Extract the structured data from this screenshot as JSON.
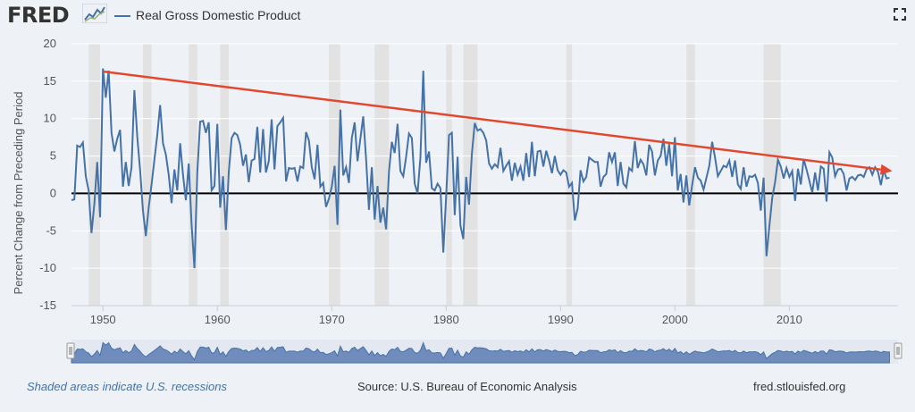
{
  "header": {
    "logo_text": "FRED",
    "series_label": "Real Gross Domestic Product"
  },
  "footer": {
    "recession_note": "Shaded areas indicate U.S. recessions",
    "source": "Source: U.S. Bureau of Economic Analysis",
    "site": "fred.stlouisfed.org"
  },
  "icons": [
    "fred-logo-chart-icon",
    "fullscreen-icon",
    "navigator-handle-icon"
  ],
  "colors": {
    "series": "#4572a7",
    "trend_arrow": "#e2472f",
    "recession": "#e2e2e2",
    "zero_line": "#000000"
  },
  "chart_data": {
    "type": "line",
    "title": "",
    "xlabel": "",
    "ylabel": "Percent Change from Preceding Period",
    "xlim": [
      1947.25,
      2019.5
    ],
    "ylim": [
      -15,
      20
    ],
    "yticks": [
      -15,
      -10,
      -5,
      0,
      5,
      10,
      15,
      20
    ],
    "xticks": [
      1950,
      1960,
      1970,
      1980,
      1990,
      2000,
      2010
    ],
    "grid": "horizontal",
    "legend": "top-left",
    "series": [
      {
        "name": "Real Gross Domestic Product",
        "x_start": 1947.25,
        "x_step": 0.25,
        "values": [
          -0.9,
          -0.8,
          6.4,
          6.2,
          6.8,
          2.3,
          0.4,
          -5.3,
          -1.4,
          4.2,
          -3.2,
          16.7,
          12.8,
          16.4,
          8.1,
          5.6,
          7.3,
          8.5,
          0.9,
          4.2,
          1.0,
          3.5,
          13.8,
          7.6,
          3.1,
          -2.3,
          -5.7,
          -1.9,
          1.2,
          4.5,
          7.8,
          11.8,
          6.7,
          5.2,
          2.5,
          -1.3,
          3.2,
          0.4,
          6.7,
          2.5,
          -0.9,
          4.0,
          -4.1,
          -10.0,
          2.8,
          9.6,
          9.7,
          8.1,
          9.5,
          0.4,
          1.0,
          9.3,
          -1.9,
          2.3,
          -4.9,
          2.8,
          7.4,
          8.1,
          7.8,
          6.5,
          3.7,
          5.2,
          1.5,
          4.4,
          4.6,
          8.9,
          2.8,
          8.6,
          2.8,
          4.3,
          9.9,
          3.2,
          9.0,
          9.5,
          10.1,
          1.6,
          3.4,
          3.3,
          3.4,
          1.6,
          3.6,
          3.4,
          8.2,
          7.1,
          3.5,
          1.9,
          6.5,
          0.9,
          1.4,
          -1.8,
          -0.7,
          0.9,
          3.7,
          -4.2,
          11.2,
          2.4,
          3.5,
          1.4,
          7.4,
          9.5,
          4.3,
          7.3,
          10.3,
          4.6,
          -2.2,
          3.5,
          -3.5,
          1.0,
          -3.9,
          -1.9,
          -4.8,
          2.9,
          6.9,
          5.4,
          9.3,
          3.0,
          2.3,
          4.9,
          8.0,
          7.4,
          1.3,
          0.0,
          4.8,
          16.4,
          4.1,
          5.6,
          0.7,
          0.4,
          1.3,
          0.7,
          -7.9,
          -0.4,
          7.8,
          8.1,
          -2.9,
          4.9,
          -4.3,
          -6.1,
          2.2,
          -1.5,
          5.3,
          9.4,
          8.4,
          8.6,
          8.1,
          7.1,
          4.0,
          3.3,
          3.9,
          3.5,
          6.1,
          3.0,
          3.7,
          4.3,
          1.7,
          4.1,
          2.5,
          3.6,
          1.7,
          5.4,
          2.2,
          6.9,
          2.3,
          5.6,
          5.7,
          3.6,
          5.7,
          4.4,
          2.7,
          5.0,
          3.1,
          2.5,
          3.1,
          2.8,
          0.9,
          1.4,
          -3.6,
          -2.0,
          3.1,
          1.6,
          2.2,
          4.8,
          4.5,
          4.2,
          4.2,
          0.9,
          2.2,
          2.6,
          5.5,
          4.2,
          5.5,
          1.0,
          4.2,
          1.3,
          0.8,
          3.4,
          3.0,
          7.0,
          3.4,
          4.5,
          3.9,
          2.4,
          6.5,
          5.6,
          2.4,
          4.4,
          5.0,
          7.3,
          3.7,
          6.6,
          2.3,
          7.5,
          0.4,
          2.6,
          -1.2,
          2.4,
          -1.6,
          1.1,
          3.5,
          2.1,
          1.7,
          0.5,
          2.1,
          3.7,
          6.9,
          4.8,
          2.3,
          3.0,
          3.7,
          3.5,
          4.4,
          2.2,
          4.4,
          1.2,
          0.6,
          3.5,
          0.9,
          2.3,
          2.2,
          2.5,
          1.4,
          -2.3,
          2.1,
          -8.4,
          -4.4,
          -0.6,
          1.5,
          4.5,
          3.6,
          2.0,
          3.4,
          2.2,
          3.0,
          -1.0,
          3.3,
          1.2,
          4.6,
          3.2,
          1.7,
          0.1,
          2.8,
          0.4,
          3.6,
          3.3,
          -1.1,
          5.5,
          4.8,
          2.3,
          3.2,
          3.3,
          2.6,
          0.4,
          2.0,
          2.2,
          1.8,
          2.4,
          2.5,
          2.2,
          3.2,
          3.5,
          2.5,
          3.5,
          2.9,
          1.1,
          3.1,
          2.0,
          2.1
        ]
      }
    ],
    "recessions": [
      [
        1948.75,
        1949.75
      ],
      [
        1953.5,
        1954.25
      ],
      [
        1957.5,
        1958.25
      ],
      [
        1960.25,
        1961.0
      ],
      [
        1969.75,
        1970.75
      ],
      [
        1973.75,
        1975.0
      ],
      [
        1980.0,
        1980.5
      ],
      [
        1981.5,
        1982.75
      ],
      [
        1990.5,
        1991.0
      ],
      [
        2001.0,
        2001.75
      ],
      [
        2007.75,
        2009.25
      ]
    ],
    "annotations": [
      {
        "type": "arrow",
        "from": [
          1950.0,
          16.3
        ],
        "to": [
          2019.0,
          3.0
        ]
      }
    ]
  }
}
